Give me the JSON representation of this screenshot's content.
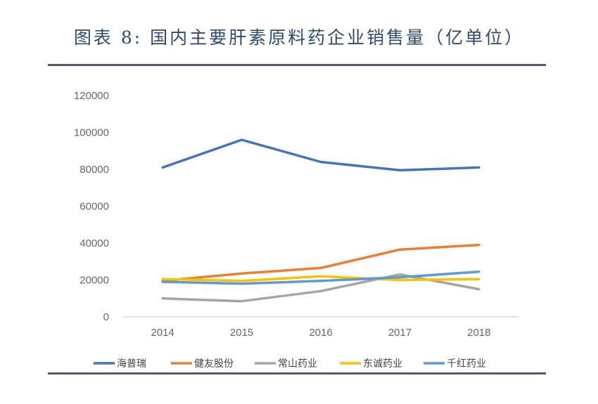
{
  "chart_data": {
    "type": "line",
    "title": "图表 8: 国内主要肝素原料药企业销售量（亿单位）",
    "xlabel": "",
    "ylabel": "",
    "categories": [
      "2014",
      "2015",
      "2016",
      "2017",
      "2018"
    ],
    "ylim": [
      0,
      120000
    ],
    "yticks": [
      0,
      20000,
      40000,
      60000,
      80000,
      100000,
      120000
    ],
    "ytick_labels": [
      "0",
      "20000",
      "40000",
      "60000",
      "80000",
      "100000",
      "120000"
    ],
    "grid": false,
    "legend_position": "bottom",
    "series": [
      {
        "name": "海普瑞",
        "color": "#4472c4",
        "values": [
          81000,
          96000,
          84000,
          79500,
          81000
        ]
      },
      {
        "name": "健友股份",
        "color": "#ed7d31",
        "values": [
          19500,
          23500,
          26500,
          36500,
          39000
        ]
      },
      {
        "name": "常山药业",
        "color": "#a5a5a5",
        "values": [
          10000,
          8500,
          14000,
          23000,
          15000
        ]
      },
      {
        "name": "东诚药业",
        "color": "#ffc000",
        "values": [
          20500,
          19500,
          22000,
          20000,
          20500
        ]
      },
      {
        "name": "千红药业",
        "color": "#5b9bd5",
        "values": [
          19000,
          18000,
          19500,
          21500,
          24500
        ]
      }
    ]
  }
}
